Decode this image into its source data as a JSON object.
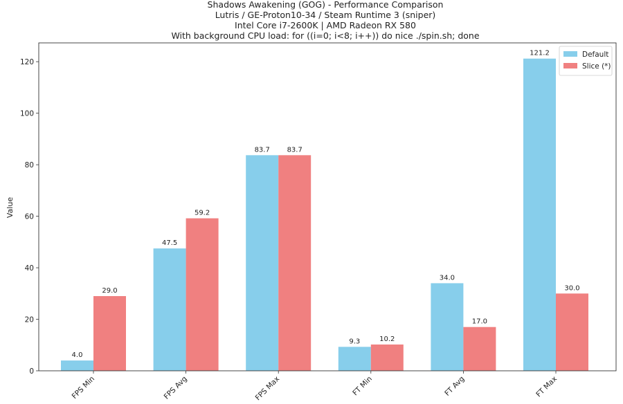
{
  "chart_data": {
    "type": "bar",
    "title_lines": [
      "Shadows Awakening (GOG) - Performance Comparison",
      "Lutris / GE-Proton10-34 / Steam Runtime 3 (sniper)",
      "Intel Core i7-2600K | AMD Radeon RX 580",
      "With background CPU load: for ((i=0; i<8; i++)) do nice ./spin.sh; done"
    ],
    "xlabel": "",
    "ylabel": "Value",
    "categories": [
      "FPS Min",
      "FPS Avg",
      "FPS Max",
      "FT Min",
      "FT Avg",
      "FT Max"
    ],
    "series": [
      {
        "name": "Default",
        "color": "#87ceeb",
        "values": [
          4.0,
          47.5,
          83.7,
          9.3,
          34.0,
          121.2
        ]
      },
      {
        "name": "Slice (*)",
        "color": "#f08080",
        "values": [
          29.0,
          59.2,
          83.7,
          10.2,
          17.0,
          30.0
        ]
      }
    ],
    "ylim": [
      0,
      127.3
    ],
    "yticks": [
      0,
      20,
      40,
      60,
      80,
      100,
      120
    ],
    "grid": false,
    "legend_position": "top-right"
  }
}
